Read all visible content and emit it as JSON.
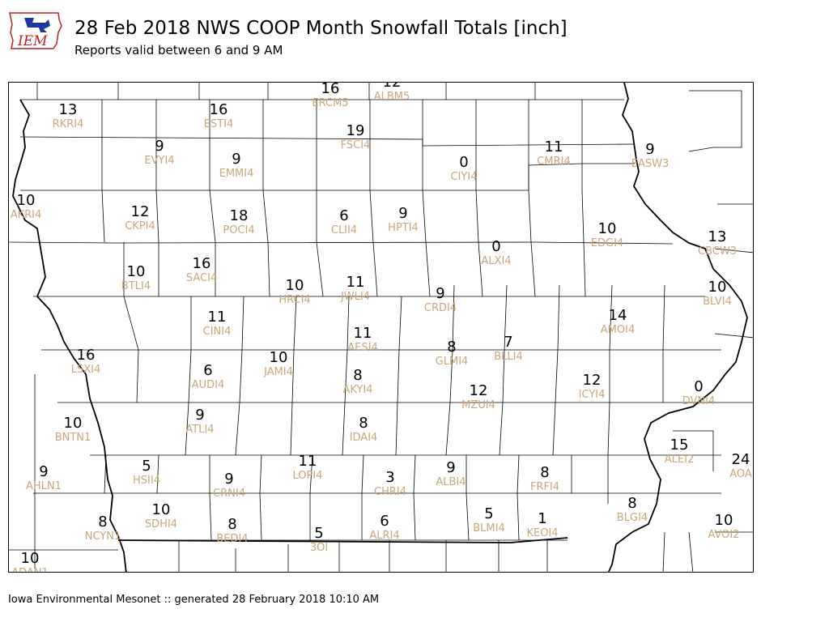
{
  "header": {
    "logo_text": "IEM",
    "title": "28 Feb 2018 NWS COOP Month Snowfall Totals [inch]",
    "subtitle": "Reports valid between 6 and 9 AM"
  },
  "footer": {
    "text": "Iowa Environmental Mesonet :: generated 28 February 2018 10:10 AM"
  },
  "colors": {
    "value": "#000000",
    "station_id": "#c8a77a",
    "border": "#000000"
  },
  "stations": [
    {
      "id": "RKRI4",
      "value": "13"
    },
    {
      "id": "ESTI4",
      "value": "16"
    },
    {
      "id": "ERCM5",
      "value": "16"
    },
    {
      "id": "ALBM5",
      "value": "12"
    },
    {
      "id": "FSCI4",
      "value": "19"
    },
    {
      "id": "EVYI4",
      "value": "9"
    },
    {
      "id": "EMMI4",
      "value": "9"
    },
    {
      "id": "CIYI4",
      "value": "0"
    },
    {
      "id": "CMRI4",
      "value": "11"
    },
    {
      "id": "EASW3",
      "value": "9"
    },
    {
      "id": "AKRI4",
      "value": "10"
    },
    {
      "id": "CKPI4",
      "value": "12"
    },
    {
      "id": "POCI4",
      "value": "18"
    },
    {
      "id": "CLII4",
      "value": "6"
    },
    {
      "id": "HPTI4",
      "value": "9"
    },
    {
      "id": "EDGI4",
      "value": "10"
    },
    {
      "id": "CBCW3",
      "value": "13"
    },
    {
      "id": "ALXI4",
      "value": "0"
    },
    {
      "id": "BTLI4",
      "value": "10"
    },
    {
      "id": "SACI4",
      "value": "16"
    },
    {
      "id": "HRCI4",
      "value": "10"
    },
    {
      "id": "JWLI4",
      "value": "11"
    },
    {
      "id": "CRDI4",
      "value": "9"
    },
    {
      "id": "BLVI4",
      "value": "10"
    },
    {
      "id": "AMOI4",
      "value": "14"
    },
    {
      "id": "CINI4",
      "value": "11"
    },
    {
      "id": "AESI4",
      "value": "11"
    },
    {
      "id": "LSXI4",
      "value": "16"
    },
    {
      "id": "GLMI4",
      "value": "8"
    },
    {
      "id": "BLLI4",
      "value": "7"
    },
    {
      "id": "AUDI4",
      "value": "6"
    },
    {
      "id": "JAMI4",
      "value": "10"
    },
    {
      "id": "AKYI4",
      "value": "8"
    },
    {
      "id": "ICYI4",
      "value": "12"
    },
    {
      "id": "DVNI4",
      "value": "0"
    },
    {
      "id": "MZUI4",
      "value": "12"
    },
    {
      "id": "ATLI4",
      "value": "9"
    },
    {
      "id": "BNTN1",
      "value": "10"
    },
    {
      "id": "IDAI4",
      "value": "8"
    },
    {
      "id": "ALEI2",
      "value": "15"
    },
    {
      "id": "AOA",
      "value": "24"
    },
    {
      "id": "HSII4",
      "value": "5"
    },
    {
      "id": "LOPI4",
      "value": "11"
    },
    {
      "id": "AHLN1",
      "value": "9"
    },
    {
      "id": "CRNI4",
      "value": "9"
    },
    {
      "id": "CHRI4",
      "value": "3"
    },
    {
      "id": "ALBI4",
      "value": "9"
    },
    {
      "id": "FRFI4",
      "value": "8"
    },
    {
      "id": "NCYN1",
      "value": "8"
    },
    {
      "id": "SDHI4",
      "value": "10"
    },
    {
      "id": "BEDI4",
      "value": "8"
    },
    {
      "id": "BLGI4",
      "value": "8"
    },
    {
      "id": "AVOI2",
      "value": "10"
    },
    {
      "id": "3OI",
      "value": "5"
    },
    {
      "id": "ALRI4",
      "value": "6"
    },
    {
      "id": "BLMI4",
      "value": "5"
    },
    {
      "id": "KEOI4",
      "value": "1"
    },
    {
      "id": "ADAN1",
      "value": "10"
    }
  ]
}
